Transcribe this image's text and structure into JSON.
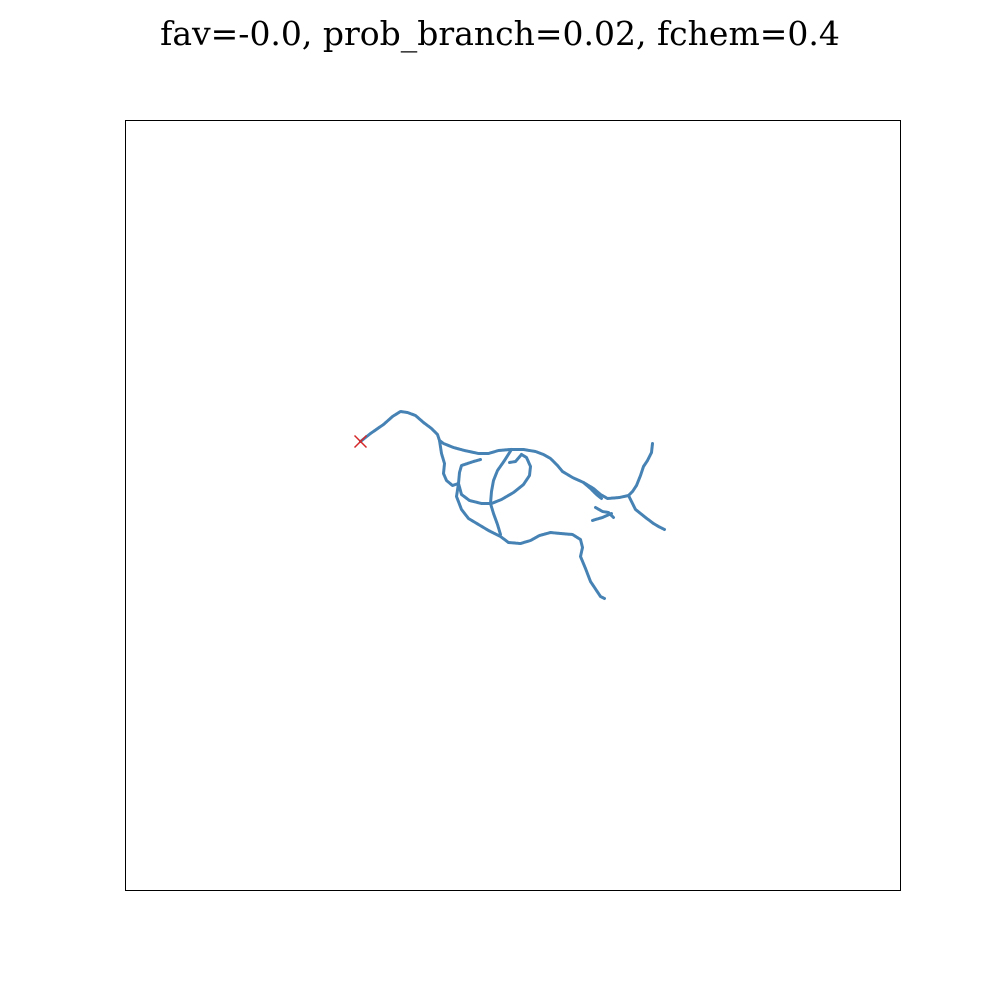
{
  "chart_data": {
    "type": "line",
    "title": "fav=-0.0, prob_branch=0.02, fchem=0.4",
    "xlabel": "",
    "ylabel": "",
    "grid": false,
    "axes_ticks_visible": false,
    "line_color": "#4682b4",
    "marker_color": "#d62728",
    "xlim": [
      0,
      775
    ],
    "ylim": [
      770,
      0
    ],
    "origin_marker": {
      "symbol": "x",
      "x": 235,
      "y": 321
    },
    "series": [
      {
        "values": [
          [
            235,
            321
          ],
          [
            245,
            313
          ],
          [
            258,
            304
          ],
          [
            267,
            296
          ],
          [
            275,
            291
          ],
          [
            282,
            292
          ],
          [
            290,
            295
          ],
          [
            298,
            302
          ],
          [
            306,
            308
          ],
          [
            312,
            314
          ],
          [
            314,
            320
          ],
          [
            318,
            323
          ],
          [
            328,
            327
          ],
          [
            339,
            330
          ],
          [
            353,
            333
          ],
          [
            363,
            333
          ],
          [
            373,
            330
          ],
          [
            385,
            329
          ],
          [
            398,
            329
          ],
          [
            410,
            331
          ],
          [
            418,
            334
          ],
          [
            425,
            338
          ],
          [
            432,
            345
          ],
          [
            437,
            351
          ],
          [
            447,
            357
          ],
          [
            458,
            362
          ],
          [
            468,
            368
          ],
          [
            475,
            374
          ],
          [
            482,
            378
          ],
          [
            494,
            377
          ],
          [
            503,
            375
          ],
          [
            507,
            371
          ],
          [
            511,
            365
          ],
          [
            515,
            355
          ],
          [
            518,
            346
          ],
          [
            522,
            340
          ],
          [
            526,
            332
          ],
          [
            527,
            323
          ]
        ]
      },
      {
        "values": [
          [
            314,
            320
          ],
          [
            316,
            333
          ],
          [
            319,
            343
          ],
          [
            318,
            353
          ],
          [
            321,
            360
          ],
          [
            327,
            365
          ],
          [
            333,
            363
          ]
        ]
      },
      {
        "values": [
          [
            333,
            363
          ],
          [
            331,
            376
          ],
          [
            336,
            389
          ],
          [
            343,
            398
          ],
          [
            353,
            404
          ],
          [
            363,
            410
          ],
          [
            375,
            416
          ],
          [
            383,
            422
          ],
          [
            395,
            423
          ],
          [
            405,
            420
          ],
          [
            414,
            415
          ],
          [
            425,
            412
          ],
          [
            435,
            413
          ],
          [
            447,
            414
          ],
          [
            455,
            419
          ],
          [
            457,
            427
          ],
          [
            455,
            436
          ],
          [
            460,
            448
          ],
          [
            465,
            461
          ],
          [
            471,
            470
          ],
          [
            475,
            476
          ],
          [
            479,
            478
          ]
        ]
      },
      {
        "values": [
          [
            333,
            363
          ],
          [
            336,
            374
          ],
          [
            344,
            380
          ],
          [
            356,
            383
          ],
          [
            366,
            383
          ],
          [
            376,
            379
          ],
          [
            388,
            372
          ],
          [
            398,
            364
          ],
          [
            404,
            355
          ],
          [
            405,
            346
          ],
          [
            401,
            337
          ],
          [
            396,
            334
          ]
        ]
      },
      {
        "values": [
          [
            333,
            363
          ],
          [
            334,
            352
          ],
          [
            336,
            345
          ],
          [
            342,
            343
          ],
          [
            348,
            341
          ],
          [
            355,
            339
          ]
        ]
      },
      {
        "values": [
          [
            386,
            329
          ],
          [
            379,
            340
          ],
          [
            372,
            350
          ],
          [
            368,
            360
          ],
          [
            366,
            371
          ],
          [
            365,
            383
          ],
          [
            368,
            393
          ],
          [
            372,
            404
          ],
          [
            375,
            414
          ]
        ]
      },
      {
        "values": [
          [
            396,
            334
          ],
          [
            390,
            341
          ],
          [
            384,
            342
          ]
        ]
      },
      {
        "values": [
          [
            503,
            375
          ],
          [
            510,
            389
          ],
          [
            520,
            397
          ],
          [
            528,
            403
          ],
          [
            533,
            406
          ],
          [
            539,
            409
          ]
        ]
      },
      {
        "values": [
          [
            486,
            393
          ],
          [
            477,
            397
          ],
          [
            470,
            399
          ],
          [
            467,
            400
          ]
        ]
      },
      {
        "values": [
          [
            458,
            362
          ],
          [
            465,
            368
          ],
          [
            471,
            374
          ],
          [
            476,
            378
          ]
        ]
      },
      {
        "values": [
          [
            470,
            387
          ],
          [
            477,
            391
          ],
          [
            483,
            392
          ],
          [
            488,
            397
          ]
        ]
      }
    ]
  }
}
